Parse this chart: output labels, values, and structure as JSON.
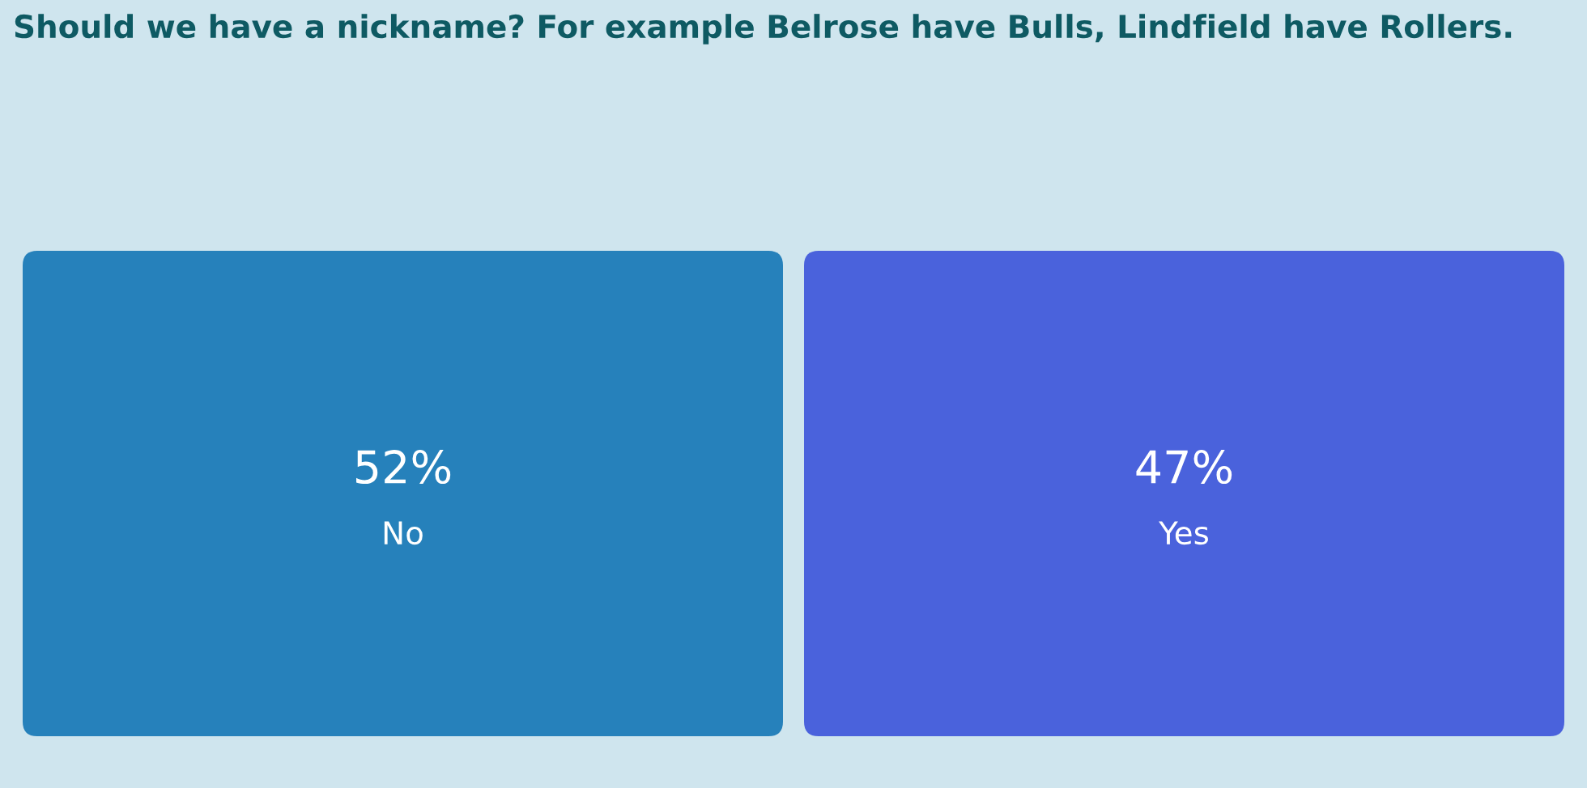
{
  "chart_data": {
    "type": "other",
    "title": "Should we have a nickname? For example Belrose have Bulls, Lindfield have Rollers.",
    "categories": [
      "No",
      "Yes"
    ],
    "values": [
      52,
      47
    ],
    "value_labels": [
      "52%",
      "47%"
    ],
    "colors": [
      "#2681bb",
      "#4a62dc"
    ]
  }
}
